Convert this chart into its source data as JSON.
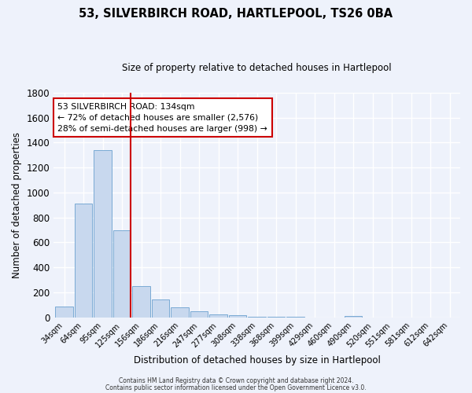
{
  "title": "53, SILVERBIRCH ROAD, HARTLEPOOL, TS26 0BA",
  "subtitle": "Size of property relative to detached houses in Hartlepool",
  "xlabel": "Distribution of detached houses by size in Hartlepool",
  "ylabel": "Number of detached properties",
  "bar_color": "#c8d8ee",
  "bar_edge_color": "#7aaad4",
  "background_color": "#eef2fb",
  "grid_color": "#ffffff",
  "categories": [
    "34sqm",
    "64sqm",
    "95sqm",
    "125sqm",
    "156sqm",
    "186sqm",
    "216sqm",
    "247sqm",
    "277sqm",
    "308sqm",
    "338sqm",
    "368sqm",
    "399sqm",
    "429sqm",
    "460sqm",
    "490sqm",
    "520sqm",
    "551sqm",
    "581sqm",
    "612sqm",
    "642sqm"
  ],
  "values": [
    90,
    910,
    1340,
    700,
    248,
    145,
    80,
    52,
    22,
    15,
    8,
    4,
    2,
    1,
    1,
    12,
    1,
    0,
    0,
    0,
    0
  ],
  "ylim": [
    0,
    1800
  ],
  "yticks": [
    0,
    200,
    400,
    600,
    800,
    1000,
    1200,
    1400,
    1600,
    1800
  ],
  "vline_color": "#cc0000",
  "annotation_title": "53 SILVERBIRCH ROAD: 134sqm",
  "annotation_line1": "← 72% of detached houses are smaller (2,576)",
  "annotation_line2": "28% of semi-detached houses are larger (998) →",
  "annotation_box_color": "#ffffff",
  "annotation_box_edge": "#cc0000",
  "footer1": "Contains HM Land Registry data © Crown copyright and database right 2024.",
  "footer2": "Contains public sector information licensed under the Open Government Licence v3.0."
}
